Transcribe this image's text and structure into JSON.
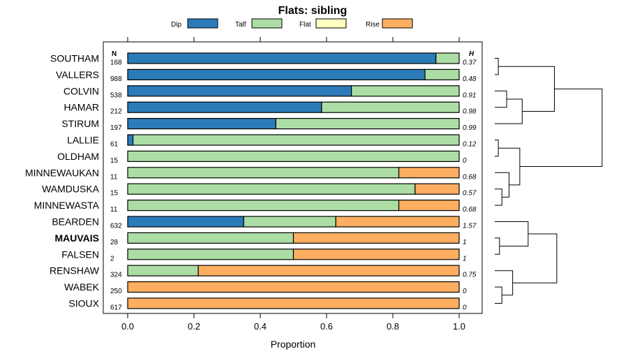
{
  "chart_data": {
    "type": "bar",
    "stacked": true,
    "orientation": "horizontal",
    "title": "Flats: sibling",
    "xlabel": "Proportion",
    "ylabel": "",
    "xlim": [
      0,
      1
    ],
    "x_ticks": [
      0.0,
      0.2,
      0.4,
      0.6,
      0.8,
      1.0
    ],
    "x_tick_labels": [
      "0.0",
      "0.2",
      "0.4",
      "0.6",
      "0.8",
      "1.0"
    ],
    "legend": [
      {
        "name": "Dip",
        "color": "#2b7bb9"
      },
      {
        "name": "Talf",
        "color": "#abdda4"
      },
      {
        "name": "Flat",
        "color": "#ffffbf"
      },
      {
        "name": "Rise",
        "color": "#fdae61"
      }
    ],
    "n_header": "N",
    "h_header": "H",
    "highlighted_category": "MAUVAIS",
    "categories": [
      "SOUTHAM",
      "VALLERS",
      "COLVIN",
      "HAMAR",
      "STIRUM",
      "LALLIE",
      "OLDHAM",
      "MINNEWAUKAN",
      "WAMDUSKA",
      "MINNEWASTA",
      "BEARDEN",
      "MAUVAIS",
      "FALSEN",
      "RENSHAW",
      "WABEK",
      "SIOUX"
    ],
    "n": [
      "168",
      "988",
      "538",
      "212",
      "197",
      "61",
      "15",
      "11",
      "15",
      "11",
      "632",
      "28",
      "2",
      "324",
      "250",
      "617"
    ],
    "h": [
      "0.37",
      "0.48",
      "0.91",
      "0.98",
      "0.99",
      "0.12",
      "0",
      "0.68",
      "0.57",
      "0.68",
      "1.57",
      "1",
      "1",
      "0.75",
      "0",
      "0"
    ],
    "series": [
      {
        "name": "Dip",
        "values": [
          0.93,
          0.897,
          0.675,
          0.585,
          0.447,
          0.016,
          0,
          0,
          0,
          0,
          0.35,
          0,
          0,
          0,
          0,
          0
        ]
      },
      {
        "name": "Talf",
        "values": [
          0.07,
          0.103,
          0.325,
          0.415,
          0.553,
          0.984,
          1.0,
          0.818,
          0.867,
          0.818,
          0.278,
          0.5,
          0.5,
          0.213,
          0,
          0
        ]
      },
      {
        "name": "Flat",
        "values": [
          0,
          0,
          0,
          0,
          0,
          0,
          0,
          0,
          0,
          0,
          0,
          0,
          0,
          0,
          0,
          0
        ]
      },
      {
        "name": "Rise",
        "values": [
          0,
          0,
          0,
          0,
          0,
          0,
          0,
          0.182,
          0.133,
          0.182,
          0.372,
          0.5,
          0.5,
          0.787,
          1.0,
          1.0
        ]
      }
    ],
    "dendrogram": {
      "leaves": [
        "SOUTHAM",
        "VALLERS",
        "COLVIN",
        "HAMAR",
        "STIRUM",
        "LALLIE",
        "OLDHAM",
        "MINNEWAUKAN",
        "WAMDUSKA",
        "MINNEWASTA",
        "BEARDEN",
        "MAUVAIS",
        "FALSEN",
        "RENSHAW",
        "WABEK",
        "SIOUX"
      ],
      "merges": [
        {
          "left": 0,
          "right": 1,
          "height": 0.03
        },
        {
          "left": 2,
          "right": 3,
          "height": 0.1
        },
        {
          "left": -2,
          "right": 4,
          "height": 0.23
        },
        {
          "left": -1,
          "right": -3,
          "height": 0.5
        },
        {
          "left": 5,
          "right": 6,
          "height": 0.03
        },
        {
          "left": 8,
          "right": 9,
          "height": 0.06
        },
        {
          "left": 7,
          "right": -6,
          "height": 0.12
        },
        {
          "left": -5,
          "right": -7,
          "height": 0.21
        },
        {
          "left": -4,
          "right": -8,
          "height": 0.9
        },
        {
          "left": 11,
          "right": 12,
          "height": 0.04
        },
        {
          "left": 10,
          "right": -10,
          "height": 0.28
        },
        {
          "left": 14,
          "right": 15,
          "height": 0.06
        },
        {
          "left": 13,
          "right": -12,
          "height": 0.15
        },
        {
          "left": -11,
          "right": -13,
          "height": 0.52
        }
      ]
    }
  }
}
